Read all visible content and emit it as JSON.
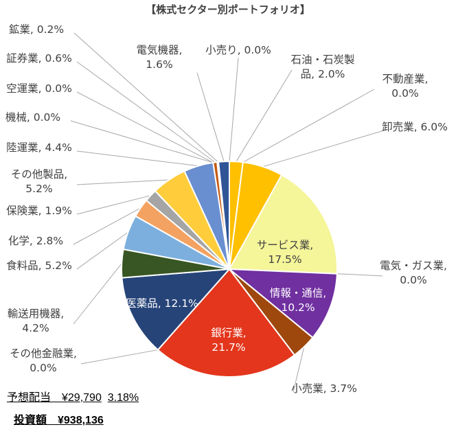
{
  "chart_data": {
    "type": "pie",
    "title": "【株式セクター別ポートフォリオ】",
    "slices": [
      {
        "name": "石油・石炭製品",
        "value": 2.0,
        "label": "石油・石炭製\n品, 2.0%",
        "color": "#ffc000",
        "placement": "outside"
      },
      {
        "name": "不動産業",
        "value": 0.0,
        "label": "不動産業,\n0.0%",
        "color": "#5b9bd5",
        "placement": "outside"
      },
      {
        "name": "卸売業",
        "value": 6.0,
        "label": "卸売業, 6.0%",
        "color": "#ffc000",
        "placement": "outside"
      },
      {
        "name": "サービス業",
        "value": 17.5,
        "label": "サービス業,\n17.5%",
        "color": "#f5f59a",
        "placement": "inside"
      },
      {
        "name": "電気・ガス業",
        "value": 0.0,
        "label": "電気・ガス業,\n0.0%",
        "color": "#4472c4",
        "placement": "outside"
      },
      {
        "name": "情報・通信",
        "value": 10.2,
        "label": "情報・通信,\n10.2%",
        "color": "#7030a0",
        "placement": "inside"
      },
      {
        "name": "小売業",
        "value": 3.7,
        "label": "小売業, 3.7%",
        "color": "#9e480e",
        "placement": "outside"
      },
      {
        "name": "銀行業",
        "value": 21.7,
        "label": "銀行業,\n21.7%",
        "color": "#e3361c",
        "placement": "inside"
      },
      {
        "name": "その他金融業",
        "value": 0.0,
        "label": "その他金融業,\n0.0%",
        "color": "#4472c4",
        "placement": "outside"
      },
      {
        "name": "医薬品",
        "value": 12.1,
        "label": "医薬品, 12.1%",
        "color": "#264478",
        "placement": "inside"
      },
      {
        "name": "輸送用機器",
        "value": 4.2,
        "label": "輸送用機器,\n4.2%",
        "color": "#375623",
        "placement": "outside"
      },
      {
        "name": "食料品",
        "value": 5.2,
        "label": "食料品, 5.2%",
        "color": "#7cafdd",
        "placement": "outside"
      },
      {
        "name": "化学",
        "value": 2.8,
        "label": "化学, 2.8%",
        "color": "#f4a261",
        "placement": "outside"
      },
      {
        "name": "保険業",
        "value": 1.9,
        "label": "保険業, 1.9%",
        "color": "#a5a5a5",
        "placement": "outside"
      },
      {
        "name": "その他製品",
        "value": 5.2,
        "label": "その他製品,\n5.2%",
        "color": "#ffcd3c",
        "placement": "outside"
      },
      {
        "name": "陸運業",
        "value": 4.4,
        "label": "陸運業, 4.4%",
        "color": "#6a8fd0",
        "placement": "outside"
      },
      {
        "name": "機械",
        "value": 0.0,
        "label": "機械, 0.0%",
        "color": "#843c0c",
        "placement": "outside"
      },
      {
        "name": "空運業",
        "value": 0.0,
        "label": "空運業, 0.0%",
        "color": "#843c0c",
        "placement": "outside"
      },
      {
        "name": "証券業",
        "value": 0.6,
        "label": "証券業, 0.6%",
        "color": "#c55a11",
        "placement": "outside"
      },
      {
        "name": "鉱業",
        "value": 0.2,
        "label": "鉱業, 0.2%",
        "color": "#808080",
        "placement": "outside"
      },
      {
        "name": "電気機器",
        "value": 1.6,
        "label": "電気機器,\n1.6%",
        "color": "#2f5597",
        "placement": "outside"
      },
      {
        "name": "小売り",
        "value": 0.0,
        "label": "小売り, 0.0%",
        "color": "#ffc000",
        "placement": "outside"
      }
    ],
    "legend": "none"
  },
  "footer": {
    "dividend_text": "予想配当　¥29,790",
    "dividend_pct": "3.18%",
    "investment_text": "投資額　¥938,136"
  }
}
